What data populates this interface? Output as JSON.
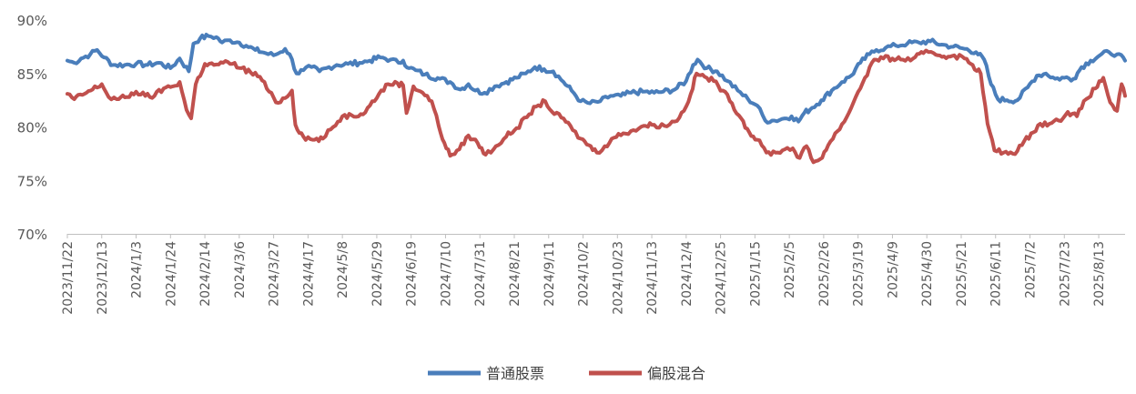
{
  "chart_data": {
    "type": "line",
    "title": "",
    "xlabel": "",
    "ylabel": "",
    "ylim": [
      70,
      90
    ],
    "ytick_labels": [
      "70%",
      "75%",
      "80%",
      "85%",
      "90%"
    ],
    "ytick_values": [
      70,
      75,
      80,
      85,
      90
    ],
    "grid": false,
    "legend_position": "bottom",
    "x_tick_labels": [
      "2023/11/22",
      "2023/12/13",
      "2024/1/3",
      "2024/1/24",
      "2024/2/14",
      "2024/3/6",
      "2024/3/27",
      "2024/4/17",
      "2024/5/8",
      "2024/5/29",
      "2024/6/19",
      "2024/7/10",
      "2024/7/31",
      "2024/8/21",
      "2024/9/11",
      "2024/10/2",
      "2024/10/23",
      "2024/11/13",
      "2024/12/4",
      "2024/12/25",
      "2025/1/15",
      "2025/2/5",
      "2025/2/26",
      "2025/3/19",
      "2025/4/9",
      "2025/4/30",
      "2025/5/21",
      "2025/6/11",
      "2025/7/2",
      "2025/7/23",
      "2025/8/13"
    ],
    "x_tick_weeks": [
      0,
      3,
      6,
      9,
      12,
      15,
      18,
      21,
      24,
      27,
      30,
      33,
      36,
      39,
      42,
      45,
      48,
      51,
      54,
      57,
      60,
      63,
      66,
      69,
      72,
      75,
      78,
      81,
      84,
      87,
      90
    ],
    "x_end_weeks": 92.3,
    "series": [
      {
        "name": "普通股票",
        "color": "#4a7ebb",
        "points": [
          [
            0,
            86.2
          ],
          [
            0.6,
            86.0
          ],
          [
            1.2,
            86.4
          ],
          [
            2,
            86.8
          ],
          [
            2.6,
            87.2
          ],
          [
            3.2,
            86.5
          ],
          [
            4,
            85.8
          ],
          [
            5,
            85.8
          ],
          [
            6,
            85.9
          ],
          [
            7,
            85.8
          ],
          [
            8,
            86.0
          ],
          [
            9,
            85.5
          ],
          [
            9.8,
            86.4
          ],
          [
            10.6,
            85.2
          ],
          [
            11,
            87.8
          ],
          [
            11.6,
            88.3
          ],
          [
            12.3,
            88.5
          ],
          [
            13,
            88.4
          ],
          [
            13.5,
            87.9
          ],
          [
            14.2,
            88.1
          ],
          [
            15,
            87.9
          ],
          [
            15.6,
            87.6
          ],
          [
            16.4,
            87.2
          ],
          [
            17.3,
            86.9
          ],
          [
            18,
            86.7
          ],
          [
            18.6,
            87.0
          ],
          [
            19,
            87.3
          ],
          [
            19.4,
            86.8
          ],
          [
            20,
            85.0
          ],
          [
            20.6,
            85.3
          ],
          [
            21.3,
            85.6
          ],
          [
            22,
            85.2
          ],
          [
            22.6,
            85.5
          ],
          [
            23.5,
            85.8
          ],
          [
            24.5,
            85.9
          ],
          [
            25.5,
            86.0
          ],
          [
            26.4,
            86.2
          ],
          [
            27.3,
            86.5
          ],
          [
            28.2,
            86.3
          ],
          [
            28.9,
            86.0
          ],
          [
            29.3,
            86.2
          ],
          [
            29.8,
            85.5
          ],
          [
            30.4,
            85.3
          ],
          [
            31.2,
            84.9
          ],
          [
            32.5,
            84.5
          ],
          [
            33.4,
            84.2
          ],
          [
            34.3,
            83.5
          ],
          [
            35,
            84.0
          ],
          [
            35.6,
            83.4
          ],
          [
            36.4,
            83.2
          ],
          [
            37.3,
            83.8
          ],
          [
            38.3,
            84.2
          ],
          [
            39.2,
            84.6
          ],
          [
            40,
            85.0
          ],
          [
            40.8,
            85.6
          ],
          [
            41.6,
            85.4
          ],
          [
            42.4,
            85.2
          ],
          [
            43.3,
            84.2
          ],
          [
            44,
            83.4
          ],
          [
            44.8,
            82.4
          ],
          [
            45.6,
            82.2
          ],
          [
            46.5,
            82.4
          ],
          [
            47.4,
            82.9
          ],
          [
            48.3,
            82.9
          ],
          [
            49.2,
            83.2
          ],
          [
            50.2,
            83.3
          ],
          [
            51.2,
            83.2
          ],
          [
            52,
            83.3
          ],
          [
            53,
            83.5
          ],
          [
            54,
            84.3
          ],
          [
            54.6,
            85.8
          ],
          [
            55,
            86.3
          ],
          [
            55.8,
            85.5
          ],
          [
            56.7,
            85.2
          ],
          [
            57.6,
            84.3
          ],
          [
            58.5,
            83.4
          ],
          [
            59.4,
            82.6
          ],
          [
            60.2,
            82.0
          ],
          [
            60.9,
            80.6
          ],
          [
            61.7,
            80.6
          ],
          [
            62.6,
            80.8
          ],
          [
            63.2,
            81.0
          ],
          [
            63.8,
            80.5
          ],
          [
            64.3,
            81.3
          ],
          [
            65,
            81.8
          ],
          [
            65.8,
            82.5
          ],
          [
            66.7,
            83.4
          ],
          [
            67.6,
            84.2
          ],
          [
            68.4,
            84.8
          ],
          [
            69.2,
            86.0
          ],
          [
            70,
            86.8
          ],
          [
            70.6,
            87.2
          ],
          [
            71.4,
            87.4
          ],
          [
            72.3,
            87.6
          ],
          [
            73.3,
            87.8
          ],
          [
            74.3,
            87.9
          ],
          [
            75.3,
            88.0
          ],
          [
            76.3,
            87.7
          ],
          [
            77.3,
            87.5
          ],
          [
            78.3,
            87.3
          ],
          [
            79.3,
            87.0
          ],
          [
            80,
            86.3
          ],
          [
            80.6,
            84.0
          ],
          [
            81.2,
            82.6
          ],
          [
            82,
            82.5
          ],
          [
            82.9,
            82.5
          ],
          [
            83.8,
            83.7
          ],
          [
            84.6,
            84.8
          ],
          [
            85.4,
            85.0
          ],
          [
            86.2,
            84.5
          ],
          [
            87,
            84.6
          ],
          [
            87.8,
            84.5
          ],
          [
            88.5,
            85.6
          ],
          [
            89.3,
            86.2
          ],
          [
            90.1,
            86.7
          ],
          [
            90.9,
            87.0
          ],
          [
            91.6,
            86.8
          ],
          [
            92.3,
            86.2
          ]
        ]
      },
      {
        "name": "偏股混合",
        "color": "#c0504d",
        "points": [
          [
            0,
            83.1
          ],
          [
            0.6,
            82.6
          ],
          [
            1.3,
            83.0
          ],
          [
            2.2,
            83.5
          ],
          [
            3,
            84.0
          ],
          [
            3.6,
            82.8
          ],
          [
            4.3,
            82.6
          ],
          [
            5.2,
            82.8
          ],
          [
            6,
            83.3
          ],
          [
            6.8,
            82.9
          ],
          [
            7.6,
            82.9
          ],
          [
            8.4,
            83.6
          ],
          [
            9.2,
            83.8
          ],
          [
            9.8,
            84.2
          ],
          [
            10.4,
            81.6
          ],
          [
            10.8,
            80.8
          ],
          [
            11.2,
            84.0
          ],
          [
            12,
            85.9
          ],
          [
            12.8,
            85.8
          ],
          [
            13.6,
            86.0
          ],
          [
            14.4,
            85.9
          ],
          [
            15.2,
            85.5
          ],
          [
            16,
            85.1
          ],
          [
            16.8,
            84.7
          ],
          [
            17.6,
            83.3
          ],
          [
            18.2,
            82.3
          ],
          [
            19,
            82.7
          ],
          [
            19.6,
            83.4
          ],
          [
            19.9,
            80.2
          ],
          [
            20.6,
            79.1
          ],
          [
            21.4,
            78.8
          ],
          [
            22.3,
            78.9
          ],
          [
            23.2,
            80.0
          ],
          [
            24,
            81.0
          ],
          [
            24.8,
            81.1
          ],
          [
            25.6,
            81.2
          ],
          [
            26.4,
            82.0
          ],
          [
            27.2,
            83.1
          ],
          [
            28,
            84.0
          ],
          [
            28.8,
            84.1
          ],
          [
            29.3,
            83.9
          ],
          [
            29.6,
            81.3
          ],
          [
            30.2,
            83.8
          ],
          [
            31,
            83.2
          ],
          [
            31.8,
            82.4
          ],
          [
            32.4,
            80.1
          ],
          [
            32.9,
            78.5
          ],
          [
            33.4,
            77.3
          ],
          [
            34.2,
            77.9
          ],
          [
            35,
            79.2
          ],
          [
            35.8,
            78.5
          ],
          [
            36.5,
            77.4
          ],
          [
            37.4,
            78.2
          ],
          [
            38.3,
            79.1
          ],
          [
            39.2,
            79.9
          ],
          [
            40.1,
            80.9
          ],
          [
            40.9,
            81.9
          ],
          [
            41.7,
            82.4
          ],
          [
            42.5,
            81.2
          ],
          [
            43.3,
            80.8
          ],
          [
            44.1,
            79.7
          ],
          [
            44.8,
            78.9
          ],
          [
            45.5,
            78.3
          ],
          [
            46.2,
            77.6
          ],
          [
            46.9,
            78.2
          ],
          [
            47.7,
            79.0
          ],
          [
            48.5,
            79.4
          ],
          [
            49.4,
            79.7
          ],
          [
            50.3,
            80.1
          ],
          [
            51.2,
            80.2
          ],
          [
            52.1,
            80.1
          ],
          [
            53,
            80.5
          ],
          [
            53.8,
            81.5
          ],
          [
            54.4,
            83.1
          ],
          [
            54.9,
            85.0
          ],
          [
            55.6,
            84.7
          ],
          [
            56.4,
            84.3
          ],
          [
            57.2,
            83.4
          ],
          [
            58,
            82.2
          ],
          [
            58.8,
            80.8
          ],
          [
            59.5,
            79.5
          ],
          [
            60.2,
            78.8
          ],
          [
            61,
            77.6
          ],
          [
            61.8,
            77.6
          ],
          [
            62.6,
            77.9
          ],
          [
            63.3,
            78.0
          ],
          [
            63.9,
            77.1
          ],
          [
            64.5,
            78.2
          ],
          [
            65.1,
            76.7
          ],
          [
            65.7,
            77.0
          ],
          [
            66.4,
            78.3
          ],
          [
            67.2,
            79.6
          ],
          [
            68,
            80.9
          ],
          [
            68.8,
            82.8
          ],
          [
            69.6,
            84.6
          ],
          [
            70.4,
            86.3
          ],
          [
            71.2,
            86.4
          ],
          [
            72,
            86.4
          ],
          [
            72.9,
            86.3
          ],
          [
            73.8,
            86.4
          ],
          [
            74.7,
            86.9
          ],
          [
            75.6,
            86.9
          ],
          [
            76.5,
            86.6
          ],
          [
            77.4,
            86.7
          ],
          [
            78.3,
            86.4
          ],
          [
            79,
            85.8
          ],
          [
            79.7,
            85.0
          ],
          [
            80.3,
            80.3
          ],
          [
            80.9,
            77.8
          ],
          [
            81.7,
            77.6
          ],
          [
            82.5,
            77.5
          ],
          [
            83.3,
            78.3
          ],
          [
            84.1,
            79.4
          ],
          [
            84.9,
            80.3
          ],
          [
            85.7,
            80.3
          ],
          [
            86.5,
            80.6
          ],
          [
            87.3,
            81.4
          ],
          [
            88.1,
            81.0
          ],
          [
            88.9,
            82.6
          ],
          [
            89.7,
            83.6
          ],
          [
            90.4,
            84.6
          ],
          [
            91,
            82.3
          ],
          [
            91.6,
            81.5
          ],
          [
            92,
            84.0
          ],
          [
            92.3,
            82.9
          ]
        ]
      }
    ]
  }
}
